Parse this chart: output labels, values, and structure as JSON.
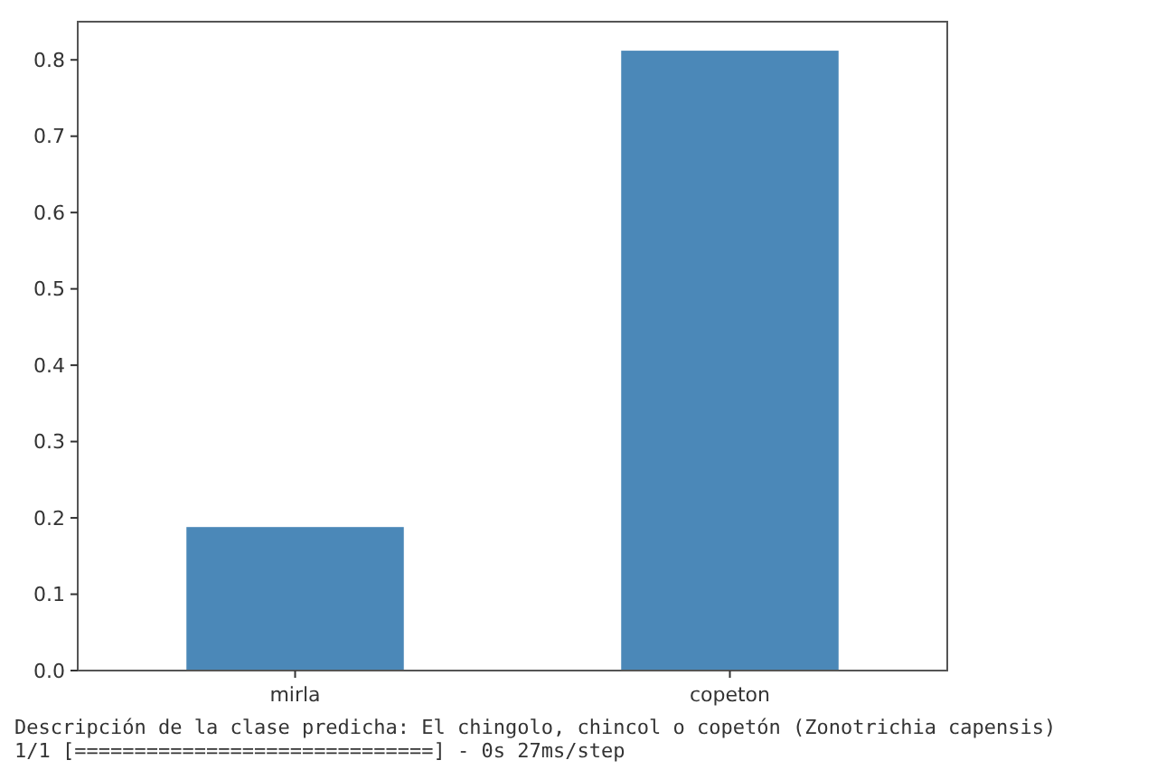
{
  "chart_data": {
    "type": "bar",
    "categories": [
      "mirla",
      "copeton"
    ],
    "values": [
      0.188,
      0.812
    ],
    "color": "#4b88b8",
    "ylim": [
      0,
      0.85
    ],
    "yticks": [
      {
        "value": 0,
        "label": "0.0"
      },
      0.1,
      0.2,
      0.3,
      0.4,
      0.5,
      0.6,
      0.7,
      0.8
    ],
    "grid": false,
    "annotations": [
      "Descripción de la clase predicha: El chingolo, chincol o copetón (Zonotrichia capensis)",
      "1/1 [==============================] - 0s 27ms/step"
    ]
  }
}
